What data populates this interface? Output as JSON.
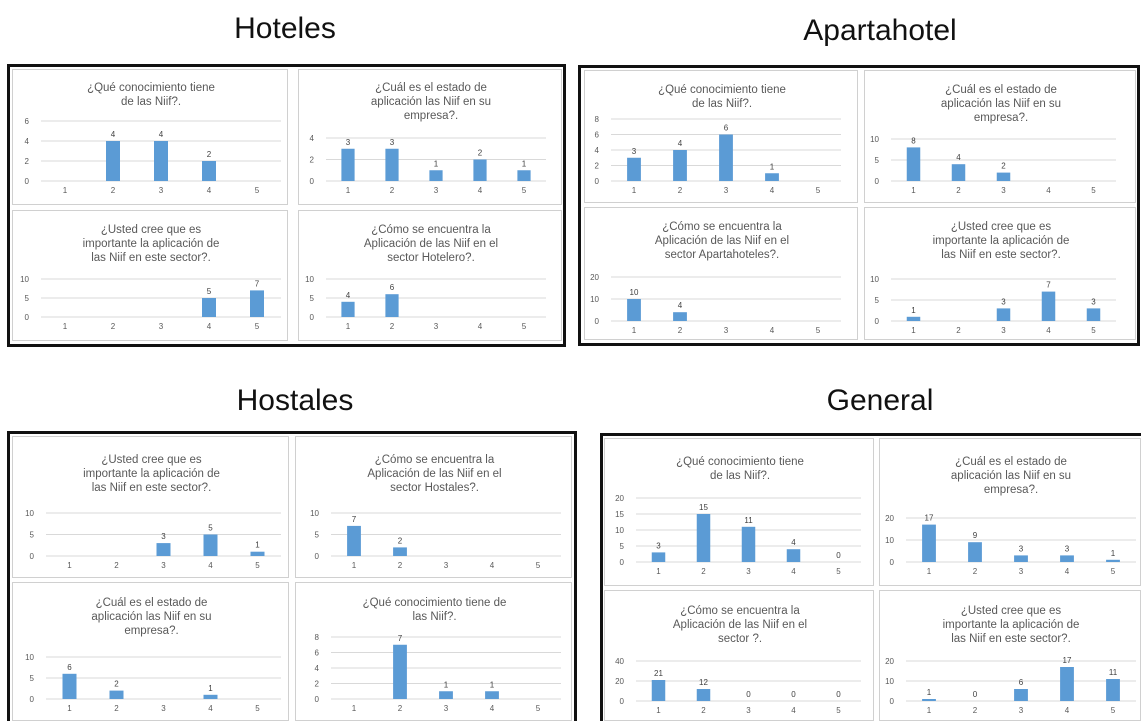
{
  "groups": [
    {
      "title": "Hoteles"
    },
    {
      "title": "Apartahotel"
    },
    {
      "title": "Hostales"
    },
    {
      "title": "General"
    }
  ],
  "style": {
    "bar_color": "#5b9bd5",
    "grid_color": "#d9d9d9",
    "text_color": "#595959"
  },
  "chart_data": [
    {
      "type": "bar",
      "group": "Hoteles",
      "title": [
        "¿Qué conocimiento tiene",
        "de las Niif?."
      ],
      "categories": [
        "1",
        "2",
        "3",
        "4",
        "5"
      ],
      "values": [
        0,
        4,
        4,
        2,
        0
      ],
      "labels": [
        "",
        "4",
        "4",
        "2",
        ""
      ],
      "ylim": [
        0,
        6
      ],
      "yticks": [
        0,
        2,
        4,
        6
      ],
      "grid": true
    },
    {
      "type": "bar",
      "group": "Hoteles",
      "title": [
        "¿Cuál es el estado de",
        "aplicación las Niif en su",
        "empresa?."
      ],
      "categories": [
        "1",
        "2",
        "3",
        "4",
        "5"
      ],
      "values": [
        3,
        3,
        1,
        2,
        1
      ],
      "labels": [
        "3",
        "3",
        "1",
        "2",
        "1"
      ],
      "ylim": [
        0,
        4
      ],
      "yticks": [
        0,
        2,
        4
      ],
      "grid": true
    },
    {
      "type": "bar",
      "group": "Hoteles",
      "title": [
        "¿Usted cree que es",
        "importante la aplicación de",
        "las Niif en este sector?."
      ],
      "categories": [
        "1",
        "2",
        "3",
        "4",
        "5"
      ],
      "values": [
        0,
        0,
        0,
        5,
        7
      ],
      "labels": [
        "",
        "",
        "",
        "5",
        "7"
      ],
      "ylim": [
        0,
        10
      ],
      "yticks": [
        0,
        5,
        10
      ],
      "grid": true
    },
    {
      "type": "bar",
      "group": "Hoteles",
      "title": [
        "¿Cómo se encuentra la",
        "Aplicación de las Niif en el",
        "sector Hotelero?."
      ],
      "categories": [
        "1",
        "2",
        "3",
        "4",
        "5"
      ],
      "values": [
        4,
        6,
        0,
        0,
        0
      ],
      "labels": [
        "4",
        "6",
        "",
        "",
        ""
      ],
      "ylim": [
        0,
        10
      ],
      "yticks": [
        0,
        5,
        10
      ],
      "grid": true
    },
    {
      "type": "bar",
      "group": "Apartahotel",
      "title": [
        "¿Qué conocimiento tiene",
        "de las Niif?."
      ],
      "categories": [
        "1",
        "2",
        "3",
        "4",
        "5"
      ],
      "values": [
        3,
        4,
        6,
        1,
        0
      ],
      "labels": [
        "3",
        "4",
        "6",
        "1",
        ""
      ],
      "ylim": [
        0,
        8
      ],
      "yticks": [
        0,
        2,
        4,
        6,
        8
      ],
      "grid": true
    },
    {
      "type": "bar",
      "group": "Apartahotel",
      "title": [
        "¿Cuál es el estado de",
        "aplicación las Niif en su",
        "empresa?."
      ],
      "categories": [
        "1",
        "2",
        "3",
        "4",
        "5"
      ],
      "values": [
        8,
        4,
        2,
        0,
        0
      ],
      "labels": [
        "8",
        "4",
        "2",
        "",
        ""
      ],
      "ylim": [
        0,
        10
      ],
      "yticks": [
        0,
        5,
        10
      ],
      "grid": true
    },
    {
      "type": "bar",
      "group": "Apartahotel",
      "title": [
        "¿Cómo se encuentra la",
        "Aplicación de las Niif en el",
        "sector Apartahoteles?."
      ],
      "categories": [
        "1",
        "2",
        "3",
        "4",
        "5"
      ],
      "values": [
        10,
        4,
        0,
        0,
        0
      ],
      "labels": [
        "10",
        "4",
        "",
        "",
        ""
      ],
      "ylim": [
        0,
        20
      ],
      "yticks": [
        0,
        10,
        20
      ],
      "grid": true
    },
    {
      "type": "bar",
      "group": "Apartahotel",
      "title": [
        "¿Usted cree que es",
        "importante la aplicación de",
        "las Niif en este sector?."
      ],
      "categories": [
        "1",
        "2",
        "3",
        "4",
        "5"
      ],
      "values": [
        1,
        0,
        3,
        7,
        3
      ],
      "labels": [
        "1",
        "",
        "3",
        "7",
        "3"
      ],
      "ylim": [
        0,
        10
      ],
      "yticks": [
        0,
        5,
        10
      ],
      "grid": true
    },
    {
      "type": "bar",
      "group": "Hostales",
      "title": [
        "¿Usted cree que es",
        "importante la aplicación de",
        "las Niif en este sector?."
      ],
      "categories": [
        "1",
        "2",
        "3",
        "4",
        "5"
      ],
      "values": [
        0,
        0,
        3,
        5,
        1
      ],
      "labels": [
        "",
        "",
        "3",
        "5",
        "1"
      ],
      "ylim": [
        0,
        10
      ],
      "yticks": [
        0,
        5,
        10
      ],
      "grid": true
    },
    {
      "type": "bar",
      "group": "Hostales",
      "title": [
        "¿Cómo se encuentra la",
        "Aplicación de las Niif en el",
        "sector Hostales?."
      ],
      "categories": [
        "1",
        "2",
        "3",
        "4",
        "5"
      ],
      "values": [
        7,
        2,
        0,
        0,
        0
      ],
      "labels": [
        "7",
        "2",
        "",
        "",
        ""
      ],
      "ylim": [
        0,
        10
      ],
      "yticks": [
        0,
        5,
        10
      ],
      "grid": true
    },
    {
      "type": "bar",
      "group": "Hostales",
      "title": [
        "¿Cuál es el estado de",
        "aplicación las Niif en su",
        "empresa?."
      ],
      "categories": [
        "1",
        "2",
        "3",
        "4",
        "5"
      ],
      "values": [
        6,
        2,
        0,
        1,
        0
      ],
      "labels": [
        "6",
        "2",
        "",
        "1",
        ""
      ],
      "ylim": [
        0,
        10
      ],
      "yticks": [
        0,
        5,
        10
      ],
      "grid": true
    },
    {
      "type": "bar",
      "group": "Hostales",
      "title": [
        "¿Qué conocimiento tiene de",
        "las Niif?."
      ],
      "categories": [
        "1",
        "2",
        "3",
        "4",
        "5"
      ],
      "values": [
        0,
        7,
        1,
        1,
        0
      ],
      "labels": [
        "",
        "7",
        "1",
        "1",
        ""
      ],
      "ylim": [
        0,
        8
      ],
      "yticks": [
        0,
        2,
        4,
        6,
        8
      ],
      "grid": true
    },
    {
      "type": "bar",
      "group": "General",
      "title": [
        "¿Qué conocimiento tiene",
        "de las Niif?."
      ],
      "categories": [
        "1",
        "2",
        "3",
        "4",
        "5"
      ],
      "values": [
        3,
        15,
        11,
        4,
        0
      ],
      "labels": [
        "3",
        "15",
        "11",
        "4",
        "0"
      ],
      "ylim": [
        0,
        20
      ],
      "yticks": [
        0,
        5,
        10,
        15,
        20
      ],
      "grid": true
    },
    {
      "type": "bar",
      "group": "General",
      "title": [
        "¿Cuál es el estado de",
        "aplicación las Niif en su",
        "empresa?."
      ],
      "categories": [
        "1",
        "2",
        "3",
        "4",
        "5"
      ],
      "values": [
        17,
        9,
        3,
        3,
        1
      ],
      "labels": [
        "17",
        "9",
        "3",
        "3",
        "1"
      ],
      "ylim": [
        0,
        20
      ],
      "yticks": [
        0,
        10,
        20
      ],
      "grid": true
    },
    {
      "type": "bar",
      "group": "General",
      "title": [
        "¿Cómo se encuentra la",
        "Aplicación de las Niif en el",
        "sector ?."
      ],
      "categories": [
        "1",
        "2",
        "3",
        "4",
        "5"
      ],
      "values": [
        21,
        12,
        0,
        0,
        0
      ],
      "labels": [
        "21",
        "12",
        "0",
        "0",
        "0"
      ],
      "ylim": [
        0,
        40
      ],
      "yticks": [
        0,
        20,
        40
      ],
      "grid": true
    },
    {
      "type": "bar",
      "group": "General",
      "title": [
        "¿Usted cree que es",
        "importante la aplicación de",
        "las Niif en este sector?."
      ],
      "categories": [
        "1",
        "2",
        "3",
        "4",
        "5"
      ],
      "values": [
        1,
        0,
        6,
        17,
        11
      ],
      "labels": [
        "1",
        "0",
        "6",
        "17",
        "11"
      ],
      "ylim": [
        0,
        20
      ],
      "yticks": [
        0,
        10,
        20
      ],
      "grid": true
    }
  ]
}
